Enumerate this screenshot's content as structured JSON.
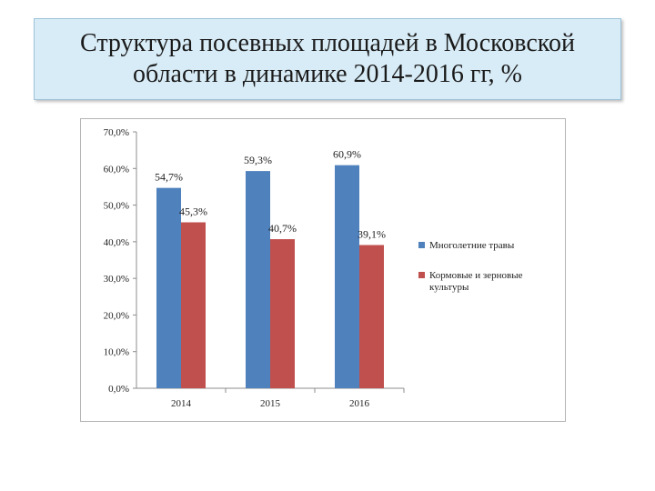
{
  "slide": {
    "title": "Структура посевных площадей в Московской области в динамике 2014-2016 гг, %"
  },
  "chart_data": {
    "type": "bar",
    "categories": [
      "2014",
      "2015",
      "2016"
    ],
    "series": [
      {
        "name": "Многолетние травы",
        "values": [
          54.7,
          59.3,
          60.9
        ],
        "labels": [
          "54,7%",
          "59,3%",
          "60,9%"
        ],
        "color": "#4f81bd"
      },
      {
        "name": "Кормовые и зерновые культуры",
        "values": [
          45.3,
          40.7,
          39.1
        ],
        "labels": [
          "45,3%",
          "40,7%",
          "39,1%"
        ],
        "color": "#c0504d"
      }
    ],
    "ylim": [
      0,
      70
    ],
    "yticks": [
      0,
      10,
      20,
      30,
      40,
      50,
      60,
      70
    ],
    "ytick_labels": [
      "0,0%",
      "10,0%",
      "20,0%",
      "30,0%",
      "40,0%",
      "50,0%",
      "60,0%",
      "70,0%"
    ],
    "legend_position": "right",
    "grid": false
  }
}
